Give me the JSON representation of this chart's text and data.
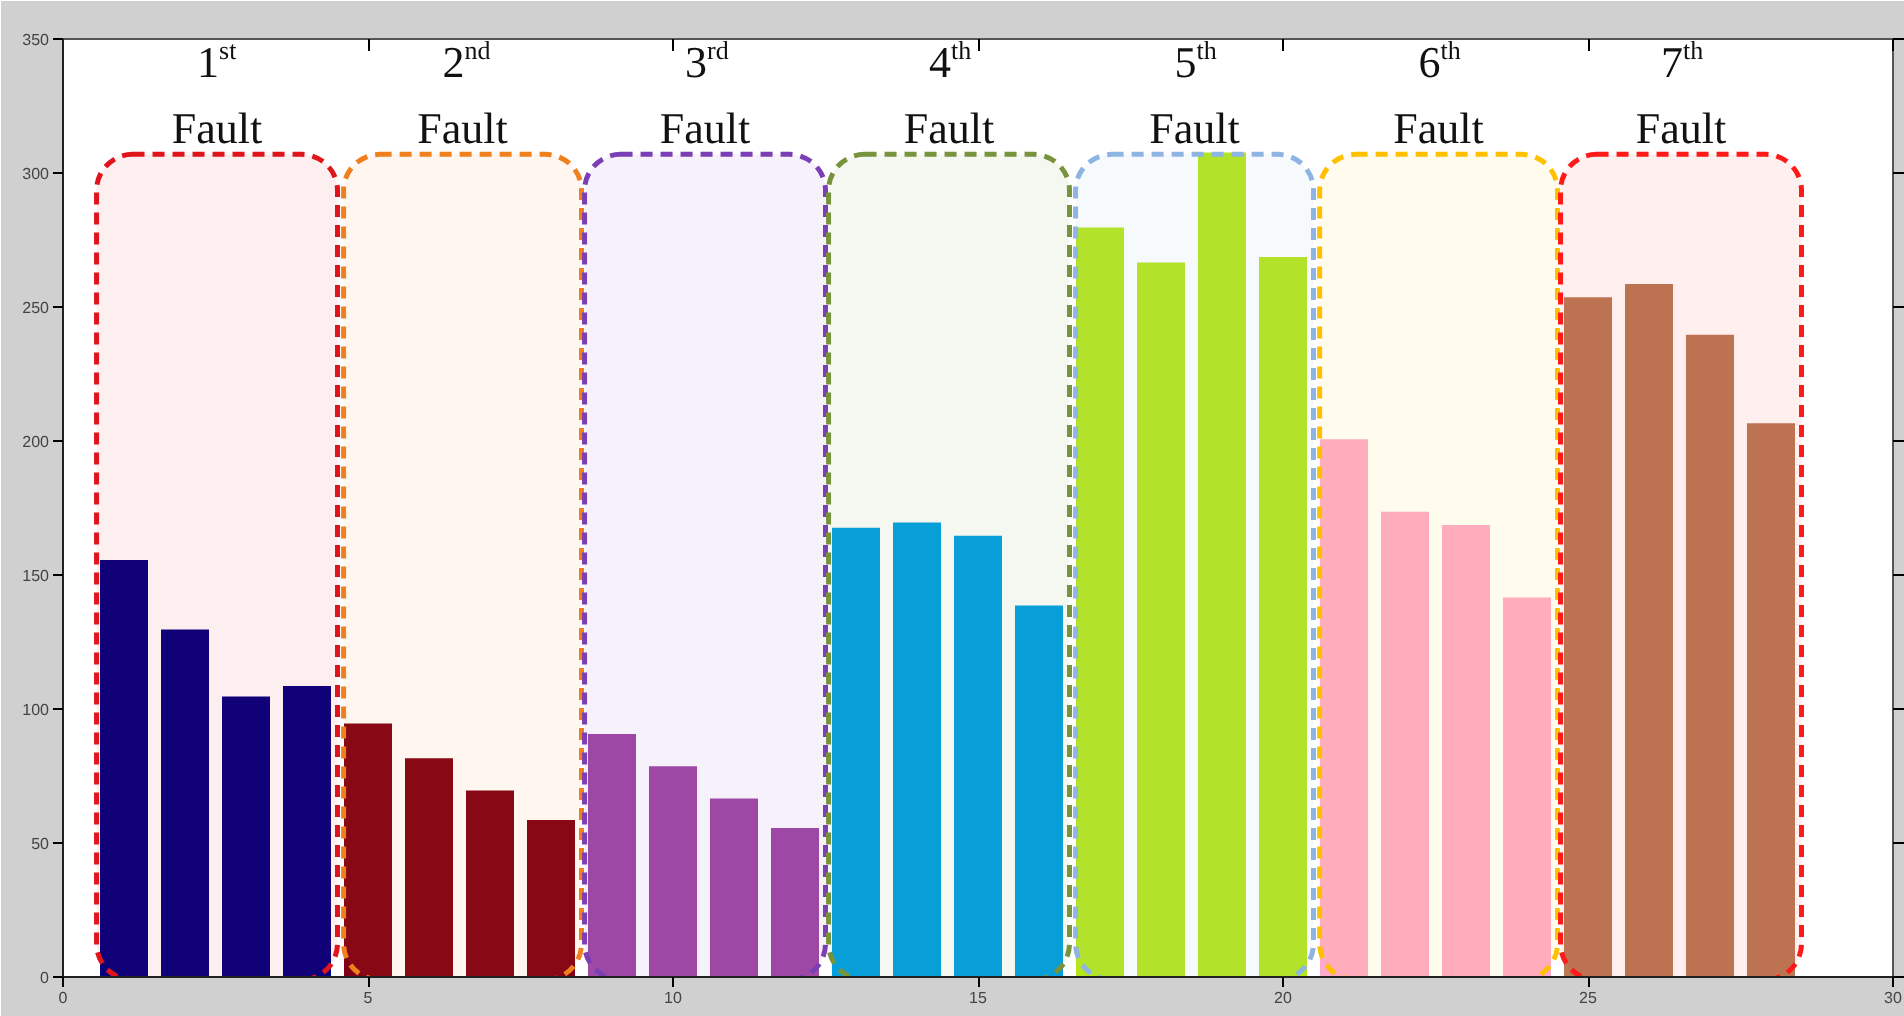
{
  "chart_data": {
    "type": "bar",
    "x": [
      1,
      2,
      3,
      4,
      5,
      6,
      7,
      8,
      9,
      10,
      11,
      12,
      13,
      14,
      15,
      16,
      17,
      18,
      19,
      20,
      21,
      22,
      23,
      24,
      25,
      26,
      27,
      28
    ],
    "values": [
      156,
      130,
      105,
      109,
      95,
      82,
      70,
      59,
      91,
      79,
      67,
      56,
      168,
      170,
      165,
      139,
      280,
      267,
      308,
      269,
      201,
      174,
      169,
      142,
      254,
      259,
      240,
      207
    ],
    "colors": [
      "#000080",
      "#000080",
      "#000080",
      "#000080",
      "#800015",
      "#800015",
      "#800015",
      "#800015",
      "#a04aa3",
      "#a04aa3",
      "#a04aa3",
      "#a04aa3",
      "#00a0e3",
      "#00a0e3",
      "#00a0e3",
      "#00a0e3",
      "#b5e61d",
      "#b5e61d",
      "#b5e61d",
      "#b5e61d",
      "#ffaacb",
      "#ffaacb",
      "#ffaacb",
      "#ffaacb",
      "#b97a57",
      "#b97a57",
      "#b97a57",
      "#b97a57"
    ],
    "xlim": [
      0,
      30
    ],
    "xticks": [
      0,
      5,
      10,
      15,
      20,
      25,
      30
    ],
    "ylim": [
      0,
      350
    ],
    "yticks": [
      0,
      50,
      100,
      150,
      200,
      250,
      300,
      350
    ],
    "grid": false,
    "bands": [
      {
        "axis": "x",
        "from": 0.55,
        "to": 4.5,
        "label": "1$^{st}$ Fault",
        "color": "#e0141b"
      },
      {
        "axis": "x",
        "from": 4.6,
        "to": 8.5,
        "label": "2$^{nd}$ Fault",
        "color": "#f0801e"
      },
      {
        "axis": "x",
        "from": 8.55,
        "to": 12.5,
        "label": "3$^{rd}$ Fault",
        "color": "#7b3fb5"
      },
      {
        "axis": "x",
        "from": 12.55,
        "to": 16.5,
        "label": "4$^{th}$ Fault",
        "color": "#77933c"
      },
      {
        "axis": "x",
        "from": 16.6,
        "to": 20.5,
        "label": "5$^{th}$ Fault",
        "color": "#8eb4e3"
      },
      {
        "axis": "x",
        "from": 20.6,
        "to": 24.5,
        "label": "6$^{th}$ Fault",
        "color": "#ffc000"
      },
      {
        "axis": "x",
        "from": 24.55,
        "to": 28.5,
        "label": "7$^{th}$ Fault",
        "color": "#ff1a1a"
      }
    ]
  }
}
